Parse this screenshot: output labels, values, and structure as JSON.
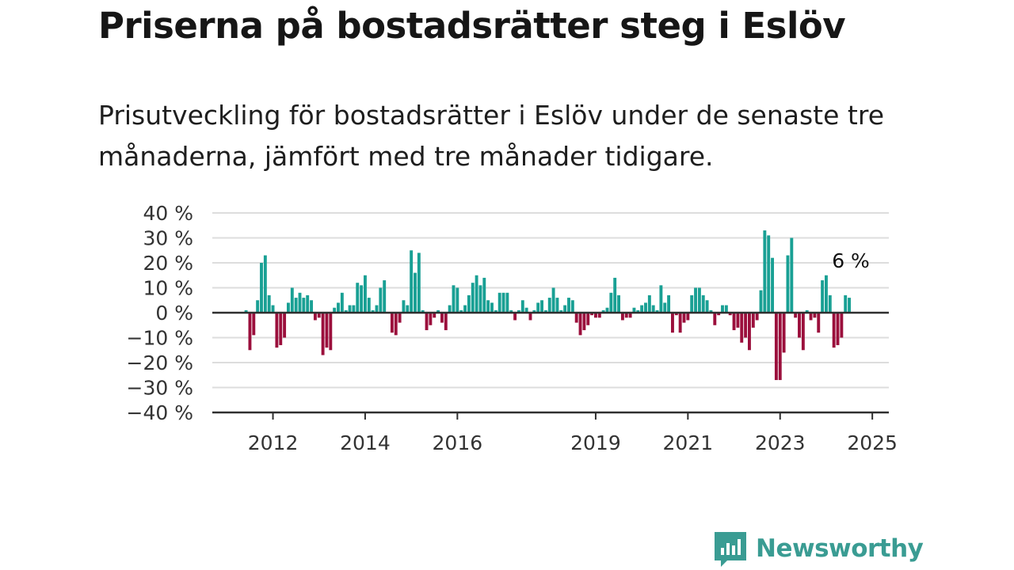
{
  "title": "Priserna på bostadsrätter steg i Eslöv",
  "subtitle": "Prisutveckling för bostadsrätter i Eslöv under de senaste tre månaderna, jämfört med tre månader tidigare.",
  "brand": {
    "name": "Newsworthy",
    "logo_icon": "bar-chart-speech-bubble-icon",
    "color": "#3a9c93"
  },
  "colors": {
    "positive": "#19a094",
    "negative": "#9b0f3c",
    "axis": "#2f2f2f",
    "grid": "#dddddd"
  },
  "chart_data": {
    "type": "bar",
    "x_type": "month",
    "start_month": "2011-06",
    "ylim": [
      -40,
      40
    ],
    "y_ticks": [
      40,
      30,
      20,
      10,
      0,
      -10,
      -20,
      -30,
      -40
    ],
    "y_tick_labels": [
      "40 %",
      "30 %",
      "20 %",
      "10 %",
      "0 %",
      "−10 %",
      "−20 %",
      "−30 %",
      "−40 %"
    ],
    "x_ticks": [
      "2012",
      "2014",
      "2016",
      "2019",
      "2021",
      "2023",
      "2025"
    ],
    "grid": true,
    "annotation": {
      "label": "6 %",
      "value": 6
    },
    "values": [
      1,
      -15,
      -9,
      5,
      20,
      23,
      7,
      3,
      -14,
      -13,
      -10,
      4,
      10,
      6,
      8,
      6,
      7,
      5,
      -3,
      -2,
      -17,
      -14,
      -15,
      2,
      4,
      8,
      1,
      3,
      3,
      12,
      11,
      15,
      6,
      1,
      3,
      10,
      13,
      null,
      -8,
      -9,
      -4,
      5,
      3,
      25,
      16,
      24,
      1,
      -7,
      -5,
      -2,
      1,
      -4,
      -7,
      3,
      11,
      10,
      1,
      3,
      7,
      12,
      15,
      11,
      14,
      5,
      4,
      1,
      8,
      8,
      8,
      1,
      -3,
      1,
      5,
      2,
      -3,
      1,
      4,
      5,
      1,
      6,
      10,
      6,
      1,
      3,
      6,
      5,
      -4,
      -9,
      -7,
      -5,
      -1,
      -2,
      -2,
      1,
      2,
      8,
      14,
      7,
      -3,
      -2,
      -2,
      2,
      1,
      3,
      4,
      7,
      3,
      1,
      11,
      4,
      7,
      -8,
      -1,
      -8,
      -4,
      -3,
      7,
      10,
      10,
      7,
      5,
      1,
      -5,
      -1,
      3,
      3,
      -1,
      -7,
      -6,
      -12,
      -10,
      -15,
      -6,
      -3,
      9,
      33,
      31,
      22,
      -27,
      -27,
      -16,
      23,
      30,
      -2,
      -10,
      -15,
      1,
      -3,
      -2,
      -8,
      13,
      15,
      7,
      -14,
      -13,
      -10,
      7,
      6
    ]
  }
}
